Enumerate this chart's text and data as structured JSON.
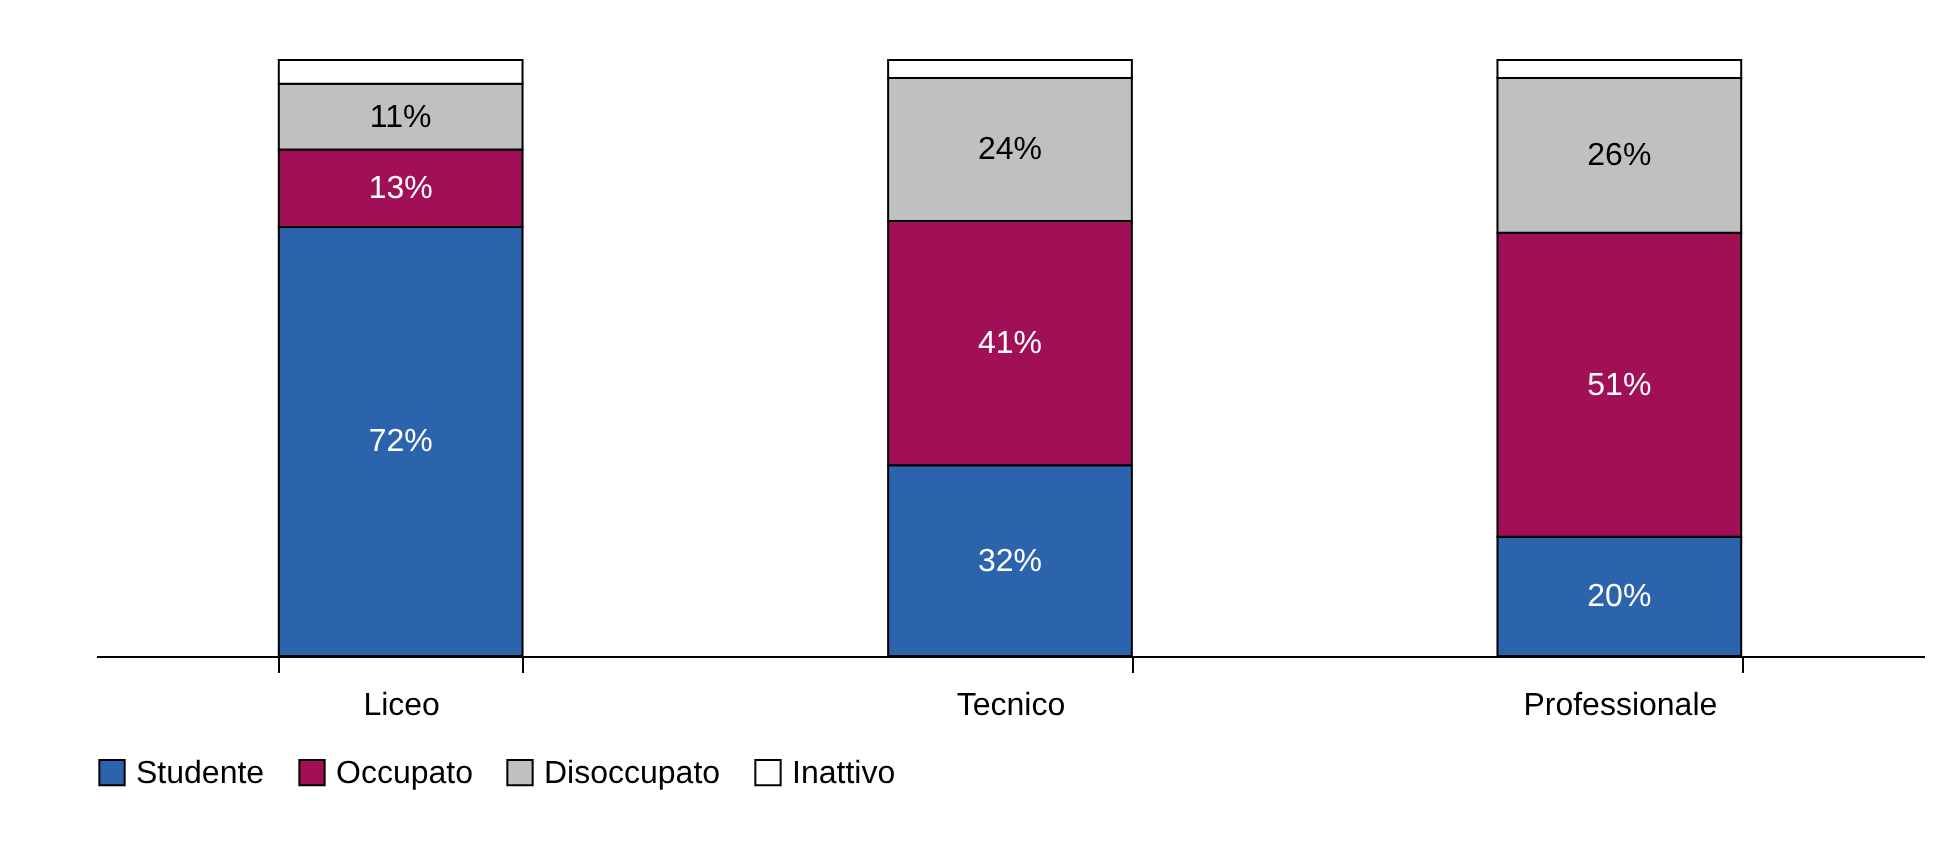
{
  "chart_data": {
    "type": "bar",
    "stacked": true,
    "categories": [
      "Liceo",
      "Tecnico",
      "Professionale"
    ],
    "ylim": [
      0,
      100
    ],
    "tick_labels": "x",
    "legend": "bottom",
    "grid": false,
    "series": [
      {
        "name": "Studente",
        "color": "#2b63ad",
        "values": [
          72,
          32,
          20
        ],
        "value_labels": [
          "72%",
          "32%",
          "20%"
        ]
      },
      {
        "name": "Occupato",
        "color": "#a10f57",
        "values": [
          13,
          41,
          51
        ],
        "value_labels": [
          "13%",
          "41%",
          "51%"
        ]
      },
      {
        "name": "Disoccupato",
        "color": "#c0c0c0",
        "values": [
          11,
          24,
          26
        ],
        "value_labels": [
          "11%",
          "24%",
          "26%"
        ]
      },
      {
        "name": "Inattivo",
        "color": "#ffffff",
        "values": [
          4,
          3,
          3
        ],
        "value_labels": [
          null,
          null,
          null
        ]
      }
    ]
  }
}
